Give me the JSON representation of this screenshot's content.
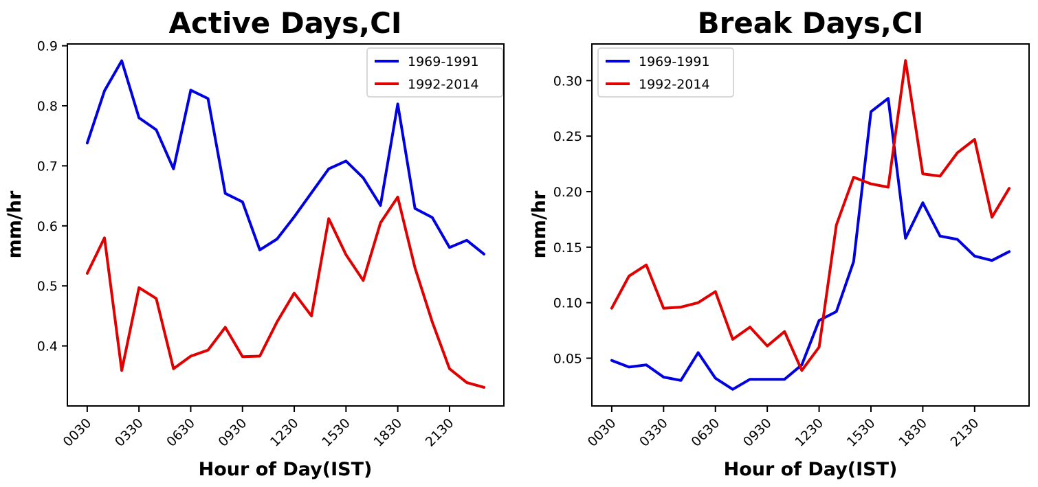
{
  "figure": {
    "background": "#ffffff",
    "text_color": "#000000",
    "axis_color": "#000000"
  },
  "legend": {
    "entries": [
      {
        "label": "1969-1991",
        "color": "#0000e0"
      },
      {
        "label": "1992-2014",
        "color": "#e00000"
      }
    ]
  },
  "chart_data": [
    {
      "type": "line",
      "title": "Active Days,CI",
      "xlabel": "Hour of Day(IST)",
      "ylabel": "mm/hr",
      "categories": [
        "0030",
        "0130",
        "0230",
        "0330",
        "0430",
        "0530",
        "0630",
        "0730",
        "0830",
        "0930",
        "1030",
        "1130",
        "1230",
        "1330",
        "1430",
        "1530",
        "1630",
        "1730",
        "1830",
        "1930",
        "2030",
        "2130",
        "2230",
        "2330"
      ],
      "xtick_indices": [
        0,
        3,
        6,
        9,
        12,
        15,
        18,
        21
      ],
      "xtick_labels": [
        "0030",
        "0330",
        "0630",
        "0930",
        "1230",
        "1530",
        "1830",
        "2130"
      ],
      "ytick_values": [
        0.9,
        0.8,
        0.7,
        0.6,
        0.5,
        0.4
      ],
      "ytick_labels": [
        "0.9",
        "0.8",
        "0.7",
        "0.6",
        "0.5",
        "0.4"
      ],
      "ylim": [
        0.3,
        0.903
      ],
      "grid": false,
      "legend_position": "upper right",
      "series": [
        {
          "name": "1969-1991",
          "color": "#0000e0",
          "values": [
            0.738,
            0.825,
            0.875,
            0.78,
            0.76,
            0.695,
            0.826,
            0.812,
            0.654,
            0.64,
            0.56,
            0.578,
            0.615,
            0.655,
            0.695,
            0.708,
            0.68,
            0.634,
            0.803,
            0.629,
            0.614,
            0.564,
            0.576,
            0.553
          ]
        },
        {
          "name": "1992-2014",
          "color": "#e00000",
          "values": [
            0.521,
            0.58,
            0.359,
            0.497,
            0.479,
            0.362,
            0.383,
            0.393,
            0.431,
            0.382,
            0.383,
            0.44,
            0.488,
            0.45,
            0.612,
            0.552,
            0.509,
            0.605,
            0.648,
            0.53,
            0.44,
            0.362,
            0.339,
            0.331
          ]
        }
      ]
    },
    {
      "type": "line",
      "title": "Break Days,CI",
      "xlabel": "Hour of Day(IST)",
      "ylabel": "mm/hr",
      "categories": [
        "0030",
        "0130",
        "0230",
        "0330",
        "0430",
        "0530",
        "0630",
        "0730",
        "0830",
        "0930",
        "1030",
        "1130",
        "1230",
        "1330",
        "1430",
        "1530",
        "1630",
        "1730",
        "1830",
        "1930",
        "2030",
        "2130",
        "2230",
        "2330"
      ],
      "xtick_indices": [
        0,
        3,
        6,
        9,
        12,
        15,
        18,
        21
      ],
      "xtick_labels": [
        "0030",
        "0330",
        "0630",
        "0930",
        "1230",
        "1530",
        "1830",
        "2130"
      ],
      "ytick_values": [
        0.3,
        0.25,
        0.2,
        0.15,
        0.1,
        0.05
      ],
      "ytick_labels": [
        "0.30",
        "0.25",
        "0.20",
        "0.15",
        "0.10",
        "0.05"
      ],
      "ylim": [
        0.007,
        0.333
      ],
      "grid": false,
      "legend_position": "upper left",
      "series": [
        {
          "name": "1969-1991",
          "color": "#0000e0",
          "values": [
            0.048,
            0.042,
            0.044,
            0.033,
            0.03,
            0.055,
            0.032,
            0.022,
            0.031,
            0.031,
            0.031,
            0.044,
            0.084,
            0.092,
            0.137,
            0.272,
            0.284,
            0.158,
            0.19,
            0.16,
            0.157,
            0.142,
            0.138,
            0.146
          ]
        },
        {
          "name": "1992-2014",
          "color": "#e00000",
          "values": [
            0.095,
            0.124,
            0.134,
            0.095,
            0.096,
            0.1,
            0.11,
            0.067,
            0.078,
            0.061,
            0.074,
            0.039,
            0.06,
            0.17,
            0.213,
            0.207,
            0.204,
            0.318,
            0.216,
            0.214,
            0.235,
            0.247,
            0.177,
            0.203
          ]
        }
      ]
    }
  ]
}
